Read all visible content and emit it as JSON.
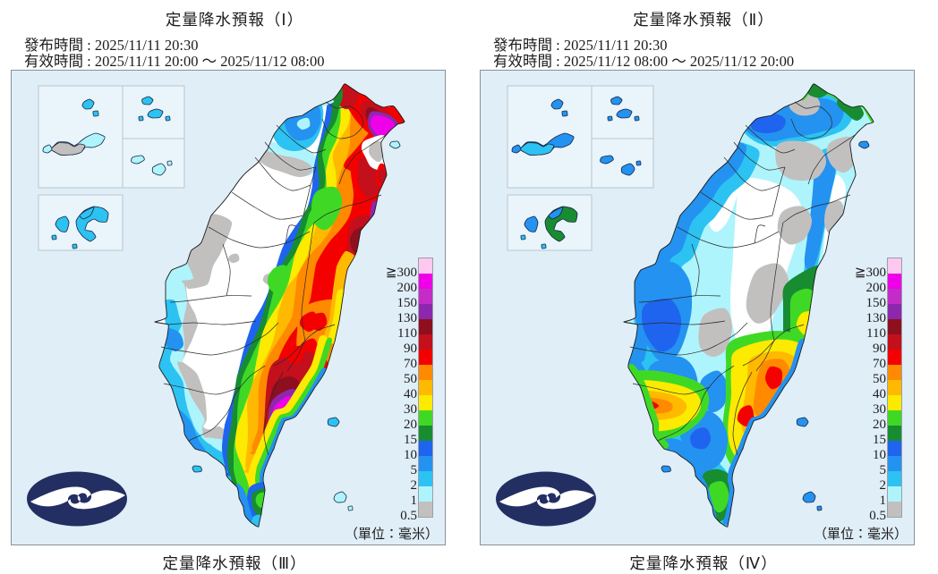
{
  "panels": [
    {
      "title": "定量降水預報（Ⅰ）",
      "issued": "發布時間 : 2025/11/11 20:30",
      "valid": "有效時間 : 2025/11/11 20:00 ～ 2025/11/12 08:00",
      "unit": "（單位：毫米）"
    },
    {
      "title": "定量降水預報（Ⅱ）",
      "issued": "發布時間 : 2025/11/11 20:30",
      "valid": "有效時間 : 2025/11/12 08:00 ～ 2025/11/12 20:00",
      "unit": "（單位：毫米）"
    }
  ],
  "partial_titles": [
    "定量降水預報（Ⅲ）",
    "定量降水預報（Ⅳ）"
  ],
  "legend": {
    "labels": [
      "≧300",
      "200",
      "150",
      "130",
      "110",
      "90",
      "70",
      "50",
      "40",
      "30",
      "20",
      "15",
      "10",
      "5",
      "2",
      "1",
      "0.5"
    ],
    "colors": [
      "#ffc8f0",
      "#ef00e8",
      "#c42cc8",
      "#8d28ae",
      "#8e0f1e",
      "#c40f1c",
      "#f40000",
      "#ff8a00",
      "#ffb900",
      "#fcea00",
      "#3fd925",
      "#188c31",
      "#1f64ee",
      "#2492f0",
      "#2cc2f2",
      "#aef4fc",
      "#c2c0bf"
    ]
  },
  "colors": {
    "sea": "#e0eef8",
    "land": "#ffffff",
    "panel_border": "#8a9096",
    "inset_border": "#b9c6ce",
    "logo": "#232e62"
  }
}
